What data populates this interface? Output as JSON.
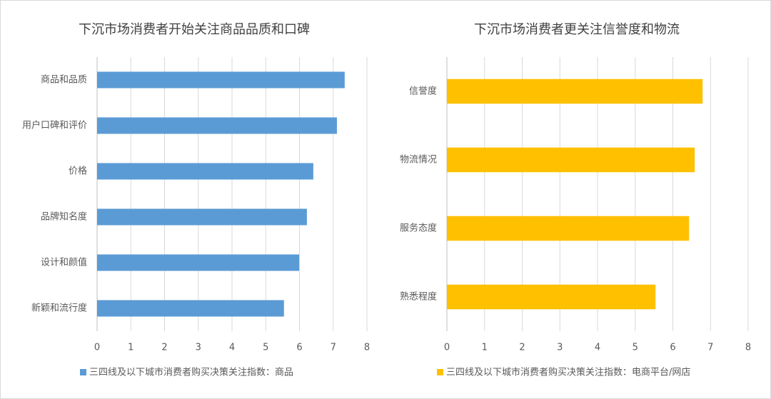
{
  "chart_data": [
    {
      "type": "hbar",
      "title": "下沉市场消费者开始关注商品品质和口碑",
      "categories": [
        "商品和品质",
        "用户口碑和评价",
        "价格",
        "品牌知名度",
        "设计和颜值",
        "新颖和流行度"
      ],
      "series": [
        {
          "name": "三四线及以下城市消费者购买决策关注指数：商品",
          "color": "#5b9bd5",
          "values": [
            7.34,
            7.11,
            6.41,
            6.22,
            5.99,
            5.54
          ]
        }
      ],
      "xlim": [
        0,
        8
      ],
      "xticks": [
        0,
        1,
        2,
        3,
        4,
        5,
        6,
        7,
        8
      ],
      "grid": true
    },
    {
      "type": "hbar",
      "title": "下沉市场消费者更关注信誉度和物流",
      "categories": [
        "信誉度",
        "物流情况",
        "服务态度",
        "熟悉程度"
      ],
      "series": [
        {
          "name": "三四线及以下城市消费者购买决策关注指数：电商平台/网店",
          "color": "#ffc000",
          "values": [
            6.79,
            6.58,
            6.43,
            5.54
          ]
        }
      ],
      "xlim": [
        0,
        8
      ],
      "xticks": [
        0,
        1,
        2,
        3,
        4,
        5,
        6,
        7,
        8
      ],
      "grid": true
    }
  ]
}
